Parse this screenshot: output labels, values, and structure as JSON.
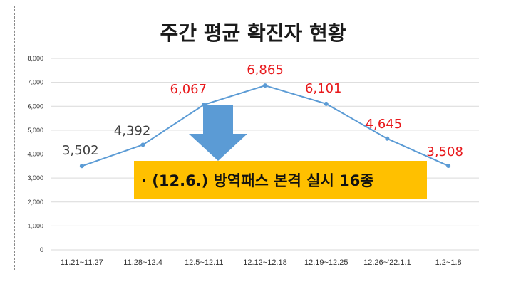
{
  "chart_data": {
    "type": "line",
    "title": "주간 평균 확진자 현황",
    "categories": [
      "11.21~11.27",
      "11.28~12.4",
      "12.5~12.11",
      "12.12~12.18",
      "12.19~12.25",
      "12.26~'22.1.1",
      "1.2~1.8"
    ],
    "values": [
      3502,
      4392,
      6067,
      6865,
      6101,
      4645,
      3508
    ],
    "data_labels": [
      "3,502",
      "4,392",
      "6,067",
      "6,865",
      "6,101",
      "4,645",
      "3,508"
    ],
    "ylim": [
      0,
      8000
    ],
    "yticks": [
      "0",
      "1,000",
      "2,000",
      "3,000",
      "4,000",
      "5,000",
      "6,000",
      "7,000",
      "8,000"
    ],
    "grid": true,
    "line_color": "#5b9bd5",
    "label_colors": [
      "#404040",
      "#404040",
      "#e8191c",
      "#e8191c",
      "#e8191c",
      "#e8191c",
      "#e8191c"
    ],
    "annotation": {
      "text": "· (12.6.) 방역패스 본격 실시 16종",
      "box_color": "#ffc000",
      "arrow_color": "#5b9bd5",
      "arrow_icon": "down-arrow-icon"
    }
  }
}
